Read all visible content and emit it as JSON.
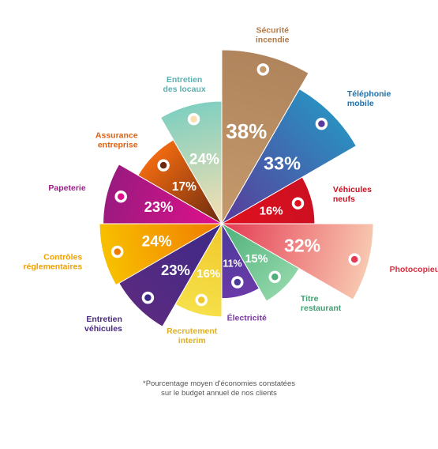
{
  "footnote": {
    "line1": "*Pourcentage moyen d'économies constatées",
    "line2": "sur le budget annuel de nos clients"
  },
  "chart_data": {
    "type": "pie",
    "subtype": "variable-radius (polar area)",
    "unit": "%",
    "slices": [
      {
        "label": [
          "Sécurité",
          "incendie"
        ],
        "value": 38,
        "color": "#b0845c",
        "color2": "#c49a6c",
        "label_color": "#b07a4a"
      },
      {
        "label": [
          "Téléphonie",
          "mobile"
        ],
        "value": 33,
        "color": "#2b8fc0",
        "color2": "#5a3a9a",
        "label_color": "#1f6fa8"
      },
      {
        "label": [
          "Véhicules",
          "neufs"
        ],
        "value": 16,
        "color": "#cc1020",
        "color2": "#e0101e",
        "label_color": "#cc1020"
      },
      {
        "label": [
          "Photocopieur"
        ],
        "value": 32,
        "color": "#f8c8b0",
        "color2": "#e43a52",
        "label_color": "#d83040"
      },
      {
        "label": [
          "Titre",
          "restaurant"
        ],
        "value": 15,
        "color": "#8fd6a8",
        "color2": "#4fb07a",
        "label_color": "#3fa070"
      },
      {
        "label": [
          "Électricité"
        ],
        "value": 11,
        "color": "#6a3aa8",
        "color2": "#4a3a9a",
        "label_color": "#7a3aa0"
      },
      {
        "label": [
          "Recrutement",
          "interim"
        ],
        "value": 16,
        "color": "#f6e04a",
        "color2": "#f0c82a",
        "label_color": "#e0b020"
      },
      {
        "label": [
          "Entretien",
          "véhicules"
        ],
        "value": 23,
        "color": "#5a2a80",
        "color2": "#3c2a88",
        "label_color": "#4a2a80"
      },
      {
        "label": [
          "Contrôles",
          "réglementaires"
        ],
        "value": 24,
        "color": "#f8c000",
        "color2": "#f07a00",
        "label_color": "#f0a000"
      },
      {
        "label": [
          "Papeterie"
        ],
        "value": 23,
        "color": "#9a1a80",
        "color2": "#e0108a",
        "label_color": "#a01a8a"
      },
      {
        "label": [
          "Assurance",
          "entreprise"
        ],
        "value": 17,
        "color": "#f06a10",
        "color2": "#6a2a10",
        "label_color": "#e06010"
      },
      {
        "label": [
          "Entretien",
          "des locaux"
        ],
        "value": 24,
        "color": "#80cfc0",
        "color2": "#f8e0b0",
        "label_color": "#5ab0b0"
      }
    ]
  }
}
